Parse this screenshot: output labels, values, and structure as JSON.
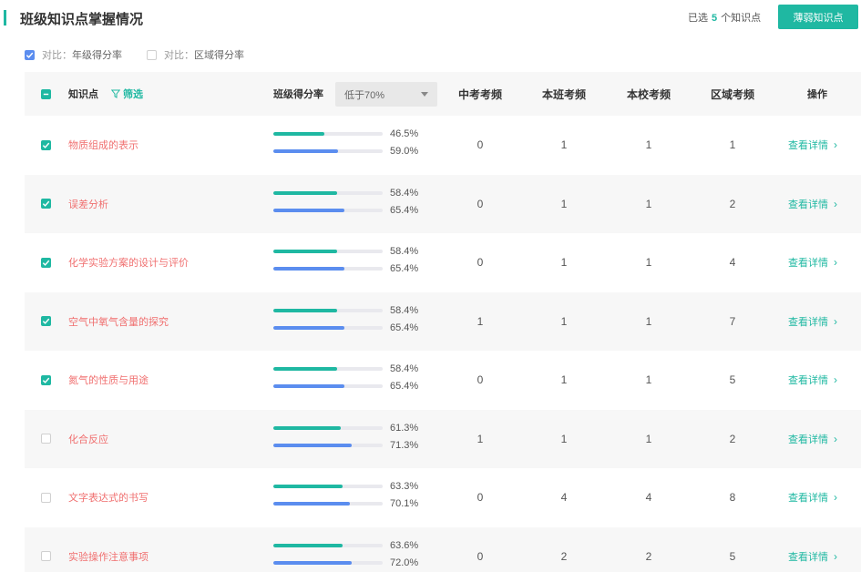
{
  "header": {
    "title": "班级知识点掌握情况",
    "selected_prefix": "已选",
    "selected_count": "5",
    "selected_suffix": "个知识点",
    "weak_button": "薄弱知识点"
  },
  "compare": {
    "grade_key": "对比：",
    "grade_label": "年级得分率",
    "grade_checked": true,
    "region_key": "对比：",
    "region_label": "区域得分率",
    "region_checked": false
  },
  "table": {
    "columns": {
      "knowledge": "知识点",
      "filter": "筛选",
      "rate": "班级得分率",
      "rate_select": "低于70%",
      "zhongkao": "中考考频",
      "class_freq": "本班考频",
      "school_freq": "本校考频",
      "region_freq": "区域考频",
      "action": "操作"
    },
    "detail_label": "查看详情",
    "rows": [
      {
        "checked": true,
        "name": "物质组成的表示",
        "class_rate": 46.5,
        "class_rate_text": "46.5%",
        "grade_rate": 59.0,
        "grade_rate_text": "59.0%",
        "zhongkao": "0",
        "class_freq": "1",
        "school_freq": "1",
        "region_freq": "1"
      },
      {
        "checked": true,
        "name": "误差分析",
        "class_rate": 58.4,
        "class_rate_text": "58.4%",
        "grade_rate": 65.4,
        "grade_rate_text": "65.4%",
        "zhongkao": "0",
        "class_freq": "1",
        "school_freq": "1",
        "region_freq": "2"
      },
      {
        "checked": true,
        "name": "化学实验方案的设计与评价",
        "class_rate": 58.4,
        "class_rate_text": "58.4%",
        "grade_rate": 65.4,
        "grade_rate_text": "65.4%",
        "zhongkao": "0",
        "class_freq": "1",
        "school_freq": "1",
        "region_freq": "4"
      },
      {
        "checked": true,
        "name": "空气中氧气含量的探究",
        "class_rate": 58.4,
        "class_rate_text": "58.4%",
        "grade_rate": 65.4,
        "grade_rate_text": "65.4%",
        "zhongkao": "1",
        "class_freq": "1",
        "school_freq": "1",
        "region_freq": "7"
      },
      {
        "checked": true,
        "name": "氮气的性质与用途",
        "class_rate": 58.4,
        "class_rate_text": "58.4%",
        "grade_rate": 65.4,
        "grade_rate_text": "65.4%",
        "zhongkao": "0",
        "class_freq": "1",
        "school_freq": "1",
        "region_freq": "5"
      },
      {
        "checked": false,
        "name": "化合反应",
        "class_rate": 61.3,
        "class_rate_text": "61.3%",
        "grade_rate": 71.3,
        "grade_rate_text": "71.3%",
        "zhongkao": "1",
        "class_freq": "1",
        "school_freq": "1",
        "region_freq": "2"
      },
      {
        "checked": false,
        "name": "文字表达式的书写",
        "class_rate": 63.3,
        "class_rate_text": "63.3%",
        "grade_rate": 70.1,
        "grade_rate_text": "70.1%",
        "zhongkao": "0",
        "class_freq": "4",
        "school_freq": "4",
        "region_freq": "8"
      },
      {
        "checked": false,
        "name": "实验操作注意事项",
        "class_rate": 63.6,
        "class_rate_text": "63.6%",
        "grade_rate": 72.0,
        "grade_rate_text": "72.0%",
        "zhongkao": "0",
        "class_freq": "2",
        "school_freq": "2",
        "region_freq": "5"
      }
    ]
  },
  "colors": {
    "accent": "#1fb8a2",
    "blue": "#5b8def",
    "kp_red": "#f07070"
  }
}
